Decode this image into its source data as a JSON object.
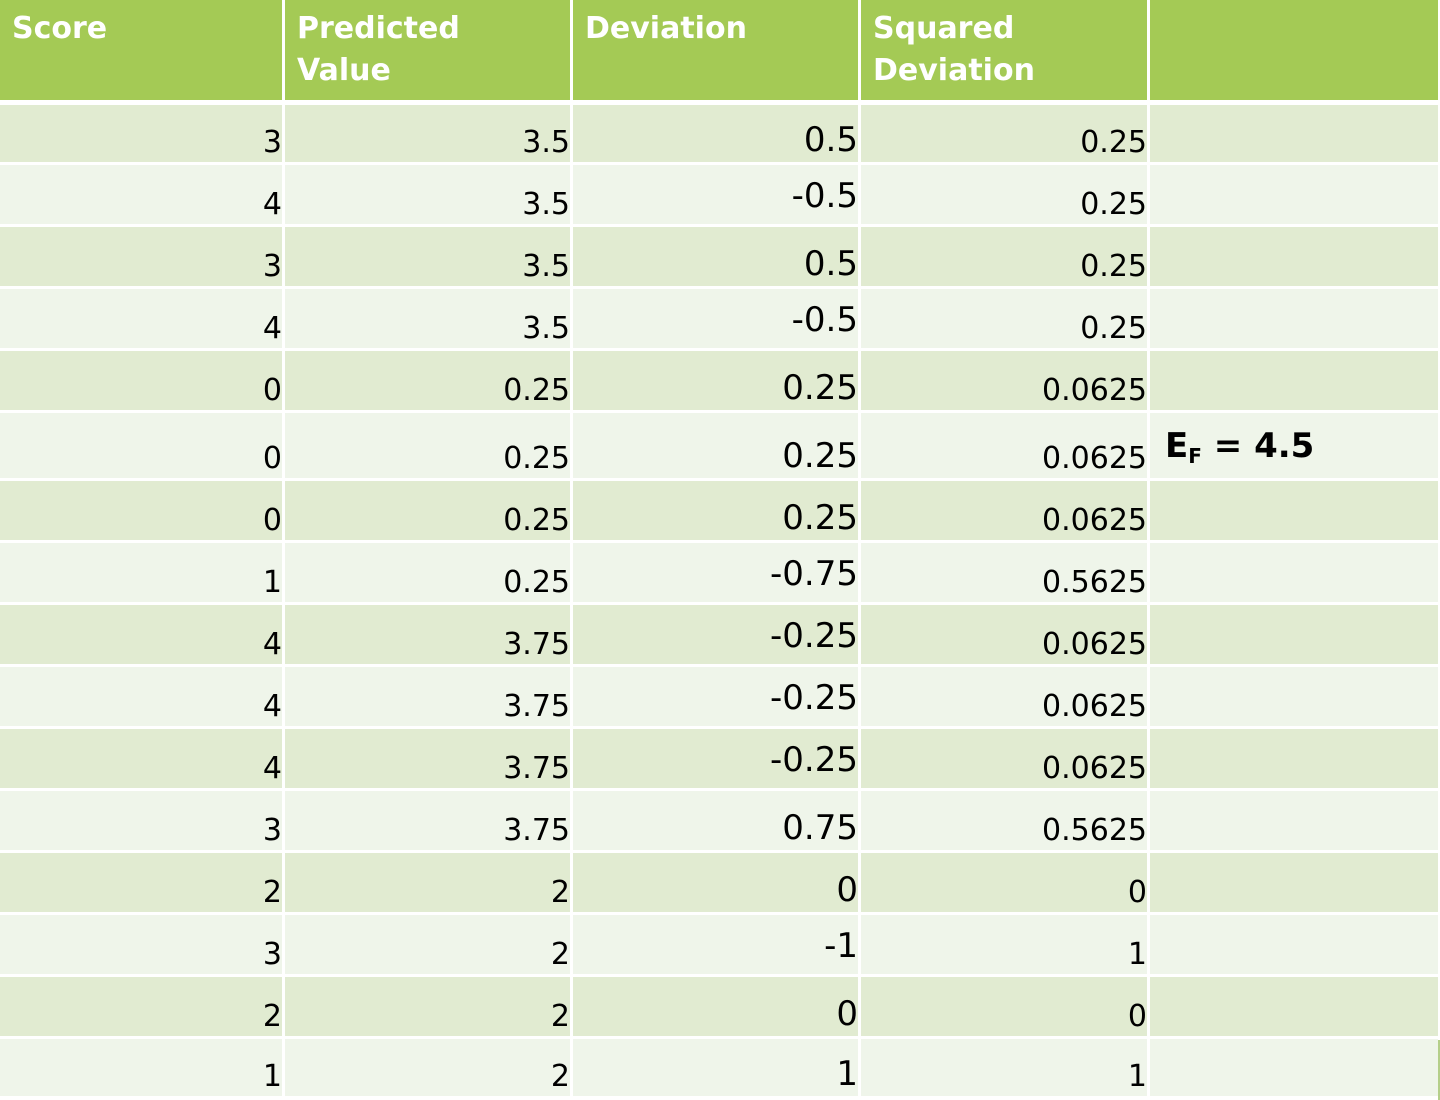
{
  "headers": [
    "Score",
    "Predicted Value",
    "Deviation",
    "Squared",
    "Deviation",
    ""
  ],
  "rows": [
    {
      "score": "3",
      "predicted": "3.5",
      "deviation": "0.5",
      "squared": "0.25"
    },
    {
      "score": "4",
      "predicted": "3.5",
      "deviation": "-0.5",
      "squared": "0.25"
    },
    {
      "score": "3",
      "predicted": "3.5",
      "deviation": "0.5",
      "squared": "0.25"
    },
    {
      "score": "4",
      "predicted": "3.5",
      "deviation": "-0.5",
      "squared": "0.25"
    },
    {
      "score": "0",
      "predicted": "0.25",
      "deviation": "0.25",
      "squared": "0.0625"
    },
    {
      "score": "0",
      "predicted": "0.25",
      "deviation": "0.25",
      "squared": "0.0625"
    },
    {
      "score": "0",
      "predicted": "0.25",
      "deviation": "0.25",
      "squared": "0.0625"
    },
    {
      "score": "1",
      "predicted": "0.25",
      "deviation": "-0.75",
      "squared": "0.5625"
    },
    {
      "score": "4",
      "predicted": "3.75",
      "deviation": "-0.25",
      "squared": "0.0625"
    },
    {
      "score": "4",
      "predicted": "3.75",
      "deviation": "-0.25",
      "squared": "0.0625"
    },
    {
      "score": "4",
      "predicted": "3.75",
      "deviation": "-0.25",
      "squared": "0.0625"
    },
    {
      "score": "3",
      "predicted": "3.75",
      "deviation": "0.75",
      "squared": "0.5625"
    },
    {
      "score": "2",
      "predicted": "2",
      "deviation": "0",
      "squared": "0"
    },
    {
      "score": "3",
      "predicted": "2",
      "deviation": "-1",
      "squared": "1"
    },
    {
      "score": "2",
      "predicted": "2",
      "deviation": "0",
      "squared": "0"
    },
    {
      "score": "1",
      "predicted": "2",
      "deviation": "1",
      "squared": "1"
    }
  ],
  "annotation": {
    "symbol": "E",
    "subscript": "F",
    "equals": " = 4.5"
  },
  "colors": {
    "header_bg": "#a4ca55",
    "header_text": "#ffffff",
    "row_odd": "#e1ebd1",
    "row_even": "#eff5ea"
  }
}
